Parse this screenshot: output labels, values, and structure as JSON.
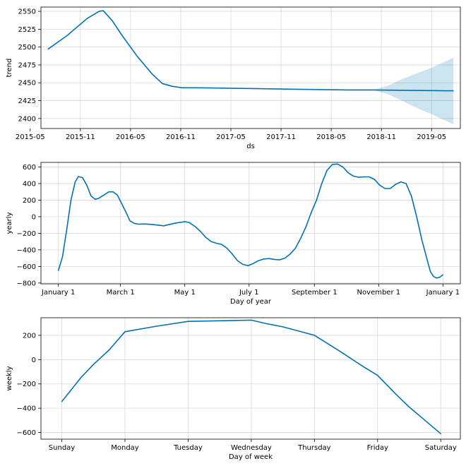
{
  "chart_data": [
    {
      "type": "line",
      "xlabel": "ds",
      "ylabel": "trend",
      "grid": true,
      "line_color": "#0072B2",
      "band_color": "#0072B2",
      "x_range": [
        2015.44,
        2019.62
      ],
      "y_range": [
        2386,
        2556
      ],
      "x_ticks": [
        {
          "v": 2015.333,
          "label": "2015-05"
        },
        {
          "v": 2015.833,
          "label": "2015-11"
        },
        {
          "v": 2016.333,
          "label": "2016-05"
        },
        {
          "v": 2016.833,
          "label": "2016-11"
        },
        {
          "v": 2017.333,
          "label": "2017-05"
        },
        {
          "v": 2017.833,
          "label": "2017-11"
        },
        {
          "v": 2018.333,
          "label": "2018-05"
        },
        {
          "v": 2018.833,
          "label": "2018-11"
        },
        {
          "v": 2019.333,
          "label": "2019-05"
        }
      ],
      "y_ticks": [
        {
          "v": 2400,
          "label": "2400"
        },
        {
          "v": 2425,
          "label": "2425"
        },
        {
          "v": 2450,
          "label": "2450"
        },
        {
          "v": 2475,
          "label": "2475"
        },
        {
          "v": 2500,
          "label": "2500"
        },
        {
          "v": 2525,
          "label": "2525"
        },
        {
          "v": 2550,
          "label": "2550"
        }
      ],
      "series": [
        {
          "name": "trend",
          "x": [
            2015.51,
            2015.7,
            2015.9,
            2016.02,
            2016.06,
            2016.15,
            2016.25,
            2016.4,
            2016.55,
            2016.65,
            2016.75,
            2016.85,
            2017.0,
            2017.5,
            2018.0,
            2018.5,
            2018.75,
            2019.0,
            2019.25,
            2019.55
          ],
          "values": [
            2497,
            2516,
            2540,
            2550,
            2551,
            2537,
            2516,
            2487,
            2462,
            2449,
            2445,
            2443,
            2443,
            2442,
            2441,
            2440,
            2440,
            2439.6,
            2439.2,
            2438.8
          ]
        }
      ],
      "uncertainty": {
        "x": [
          2018.75,
          2018.9,
          2019.05,
          2019.2,
          2019.35,
          2019.55
        ],
        "upper": [
          2440,
          2446,
          2456,
          2464,
          2472,
          2485
        ],
        "lower": [
          2440,
          2434,
          2424,
          2414,
          2405,
          2392
        ]
      }
    },
    {
      "type": "line",
      "xlabel": "Day of year",
      "ylabel": "yearly",
      "grid": true,
      "line_color": "#0072B2",
      "x_range": [
        -16.5,
        381.5
      ],
      "y_range": [
        -810,
        655
      ],
      "x_ticks": [
        {
          "v": 0,
          "label": "January 1"
        },
        {
          "v": 59,
          "label": "March 1"
        },
        {
          "v": 120,
          "label": "May 1"
        },
        {
          "v": 181,
          "label": "July 1"
        },
        {
          "v": 243,
          "label": "September 1"
        },
        {
          "v": 304,
          "label": "November 1"
        },
        {
          "v": 365,
          "label": "January 1"
        }
      ],
      "y_ticks": [
        {
          "v": -800,
          "label": "−800"
        },
        {
          "v": -600,
          "label": "−600"
        },
        {
          "v": -400,
          "label": "−400"
        },
        {
          "v": -200,
          "label": "−200"
        },
        {
          "v": 0,
          "label": "0"
        },
        {
          "v": 200,
          "label": "200"
        },
        {
          "v": 400,
          "label": "400"
        },
        {
          "v": 600,
          "label": "600"
        }
      ],
      "series": [
        {
          "name": "yearly",
          "x": [
            0,
            4,
            8,
            12,
            16,
            19,
            23,
            27,
            31,
            35,
            38,
            43,
            48,
            52,
            56,
            60,
            64,
            68,
            72,
            76,
            82,
            90,
            100,
            110,
            120,
            124,
            130,
            135,
            140,
            145,
            150,
            155,
            160,
            165,
            170,
            175,
            180,
            185,
            190,
            195,
            200,
            205,
            210,
            215,
            220,
            225,
            230,
            235,
            240,
            245,
            250,
            255,
            260,
            265,
            270,
            275,
            280,
            285,
            290,
            295,
            300,
            305,
            310,
            315,
            320,
            325,
            330,
            335,
            340,
            345,
            350,
            353,
            356,
            359,
            362,
            365
          ],
          "values": [
            -650,
            -480,
            -150,
            200,
            420,
            485,
            470,
            380,
            250,
            210,
            220,
            260,
            300,
            300,
            260,
            160,
            60,
            -50,
            -80,
            -90,
            -88,
            -95,
            -110,
            -80,
            -60,
            -70,
            -120,
            -180,
            -250,
            -300,
            -320,
            -335,
            -380,
            -450,
            -530,
            -575,
            -590,
            -565,
            -530,
            -510,
            -505,
            -515,
            -520,
            -500,
            -450,
            -380,
            -260,
            -120,
            50,
            200,
            400,
            560,
            630,
            635,
            600,
            530,
            490,
            475,
            480,
            480,
            450,
            380,
            340,
            340,
            390,
            420,
            400,
            250,
            0,
            -280,
            -520,
            -660,
            -720,
            -740,
            -730,
            -700
          ]
        }
      ]
    },
    {
      "type": "line",
      "xlabel": "Day of week",
      "ylabel": "weekly",
      "grid": true,
      "line_color": "#0072B2",
      "x_range": [
        -0.33,
        6.31
      ],
      "y_range": [
        -655,
        345
      ],
      "x_ticks": [
        {
          "v": 0,
          "label": "Sunday"
        },
        {
          "v": 1,
          "label": "Monday"
        },
        {
          "v": 2,
          "label": "Tuesday"
        },
        {
          "v": 3,
          "label": "Wednesday"
        },
        {
          "v": 4,
          "label": "Thursday"
        },
        {
          "v": 5,
          "label": "Friday"
        },
        {
          "v": 6,
          "label": "Saturday"
        }
      ],
      "y_ticks": [
        {
          "v": -600,
          "label": "−600"
        },
        {
          "v": -400,
          "label": "−400"
        },
        {
          "v": -200,
          "label": "−200"
        },
        {
          "v": 0,
          "label": "0"
        },
        {
          "v": 200,
          "label": "200"
        }
      ],
      "series": [
        {
          "name": "weekly",
          "x": [
            0,
            0.3,
            0.5,
            0.75,
            1.0,
            1.5,
            2.0,
            2.5,
            3.0,
            3.25,
            3.5,
            4.0,
            4.4,
            4.75,
            5.0,
            5.3,
            5.5,
            5.75,
            6.0
          ],
          "values": [
            -345,
            -150,
            -40,
            80,
            230,
            275,
            315,
            320,
            325,
            295,
            270,
            200,
            70,
            -50,
            -130,
            -290,
            -390,
            -500,
            -610
          ]
        }
      ]
    }
  ]
}
